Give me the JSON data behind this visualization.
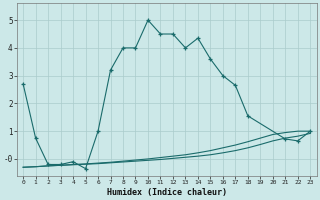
{
  "title": "",
  "xlabel": "Humidex (Indice chaleur)",
  "background_color": "#cce8e8",
  "grid_color": "#aacccc",
  "line_color": "#1a6b6b",
  "xlim": [
    -0.5,
    23.5
  ],
  "ylim": [
    -0.6,
    5.6
  ],
  "xticks": [
    0,
    1,
    2,
    3,
    4,
    5,
    6,
    7,
    8,
    9,
    10,
    11,
    12,
    13,
    14,
    15,
    16,
    17,
    18,
    19,
    20,
    21,
    22,
    23
  ],
  "yticks": [
    0,
    1,
    2,
    3,
    4,
    5
  ],
  "ytick_labels": [
    "-0",
    "1",
    "2",
    "3",
    "4",
    "5"
  ],
  "line1_x": [
    0,
    1,
    2,
    3,
    4,
    5,
    6,
    7,
    8,
    9,
    10,
    11,
    12,
    13,
    14,
    15,
    16,
    17,
    18,
    21,
    22,
    23
  ],
  "line1_y": [
    2.7,
    0.75,
    -0.2,
    -0.2,
    -0.1,
    -0.35,
    1.0,
    3.2,
    4.0,
    4.0,
    5.0,
    4.5,
    4.5,
    4.0,
    4.35,
    3.6,
    3.0,
    2.65,
    1.55,
    0.72,
    0.65,
    1.0
  ],
  "line2_x": [
    0,
    1,
    2,
    3,
    4,
    5,
    6,
    7,
    8,
    9,
    10,
    11,
    12,
    13,
    14,
    15,
    16,
    17,
    18,
    19,
    20,
    21,
    22,
    23
  ],
  "line2_y": [
    -0.3,
    -0.28,
    -0.25,
    -0.23,
    -0.2,
    -0.18,
    -0.15,
    -0.12,
    -0.08,
    -0.04,
    0.0,
    0.05,
    0.1,
    0.15,
    0.22,
    0.3,
    0.4,
    0.5,
    0.62,
    0.75,
    0.88,
    0.95,
    1.0,
    1.0
  ],
  "line3_x": [
    0,
    1,
    2,
    3,
    4,
    5,
    6,
    7,
    8,
    9,
    10,
    11,
    12,
    13,
    14,
    15,
    16,
    17,
    18,
    19,
    20,
    21,
    22,
    23
  ],
  "line3_y": [
    -0.3,
    -0.28,
    -0.25,
    -0.23,
    -0.21,
    -0.19,
    -0.17,
    -0.14,
    -0.11,
    -0.08,
    -0.05,
    -0.02,
    0.02,
    0.06,
    0.1,
    0.15,
    0.22,
    0.3,
    0.4,
    0.52,
    0.65,
    0.75,
    0.82,
    0.92
  ]
}
